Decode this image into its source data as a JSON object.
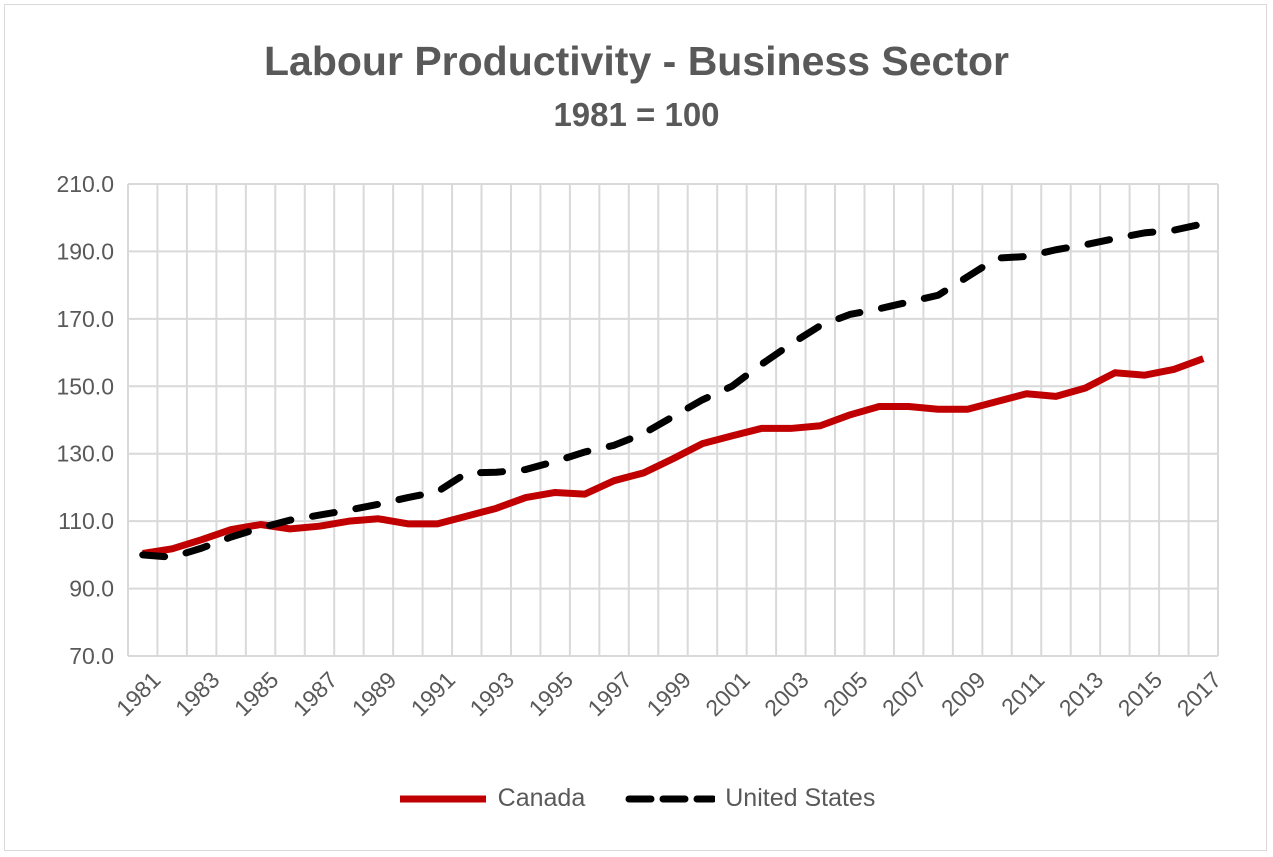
{
  "chart_data": {
    "type": "line",
    "title": "Labour Productivity - Business Sector",
    "subtitle": "1981 = 100",
    "xlabel": "",
    "ylabel": "",
    "ylim": [
      70,
      210
    ],
    "yticks": [
      "70.0",
      "90.0",
      "110.0",
      "130.0",
      "150.0",
      "170.0",
      "190.0",
      "210.0"
    ],
    "x": [
      1981,
      1982,
      1983,
      1984,
      1985,
      1986,
      1987,
      1988,
      1989,
      1990,
      1991,
      1992,
      1993,
      1994,
      1995,
      1996,
      1997,
      1998,
      1999,
      2000,
      2001,
      2002,
      2003,
      2004,
      2005,
      2006,
      2007,
      2008,
      2009,
      2010,
      2011,
      2012,
      2013,
      2014,
      2015,
      2016,
      2017
    ],
    "xticks": [
      "1981",
      "1983",
      "1985",
      "1987",
      "1989",
      "1991",
      "1993",
      "1995",
      "1997",
      "1999",
      "2001",
      "2003",
      "2005",
      "2007",
      "2009",
      "2011",
      "2013",
      "2015",
      "2017"
    ],
    "grid": true,
    "legend": "bottom",
    "series": [
      {
        "name": "Canada",
        "color": "#c00000",
        "style": "solid",
        "values": [
          100.4,
          101.8,
          104.5,
          107.5,
          109.0,
          107.7,
          108.5,
          110.0,
          110.7,
          109.2,
          109.2,
          111.5,
          113.8,
          117.0,
          118.5,
          118.0,
          122.0,
          124.3,
          128.5,
          133.0,
          135.3,
          137.5,
          137.5,
          138.3,
          141.5,
          144.0,
          144.0,
          143.2,
          143.2,
          145.5,
          147.8,
          147.0,
          149.5,
          154.0,
          153.3,
          155.0,
          158.2
        ]
      },
      {
        "name": "United States",
        "color": "#000000",
        "style": "dashed",
        "values": [
          100.0,
          99.3,
          102.0,
          105.3,
          108.0,
          110.3,
          111.8,
          113.3,
          115.0,
          117.0,
          118.7,
          124.3,
          124.5,
          125.3,
          127.7,
          130.5,
          132.5,
          136.0,
          141.0,
          146.0,
          150.0,
          156.5,
          162.5,
          168.0,
          171.3,
          173.0,
          175.0,
          177.0,
          182.5,
          188.0,
          188.5,
          190.5,
          192.0,
          193.8,
          195.5,
          196.3,
          198.2
        ]
      }
    ]
  }
}
